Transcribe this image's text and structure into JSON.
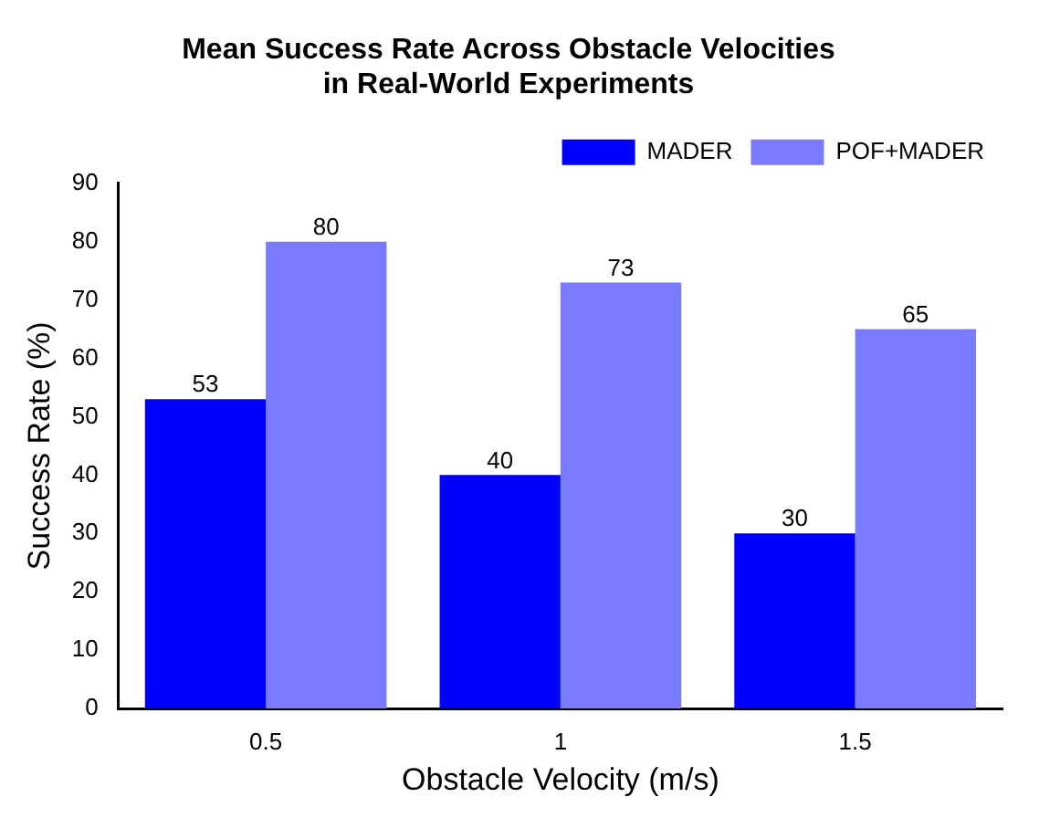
{
  "chart_data": {
    "type": "bar",
    "title": "Mean Success Rate Across Obstacle Velocities\nin Real-World Experiments",
    "xlabel": "Obstacle Velocity (m/s)",
    "ylabel": "Success Rate (%)",
    "categories": [
      "0.5",
      "1",
      "1.5"
    ],
    "series": [
      {
        "name": "MADER",
        "color": "#0000ff",
        "values": [
          53,
          40,
          30
        ]
      },
      {
        "name": "POF+MADER",
        "color": "#7a7aff",
        "values": [
          80,
          73,
          65
        ]
      }
    ],
    "ylim": [
      0,
      90
    ],
    "yticks": [
      0,
      10,
      20,
      30,
      40,
      50,
      60,
      70,
      80,
      90
    ],
    "data_labels": true,
    "legend": "top right",
    "grid": false
  }
}
